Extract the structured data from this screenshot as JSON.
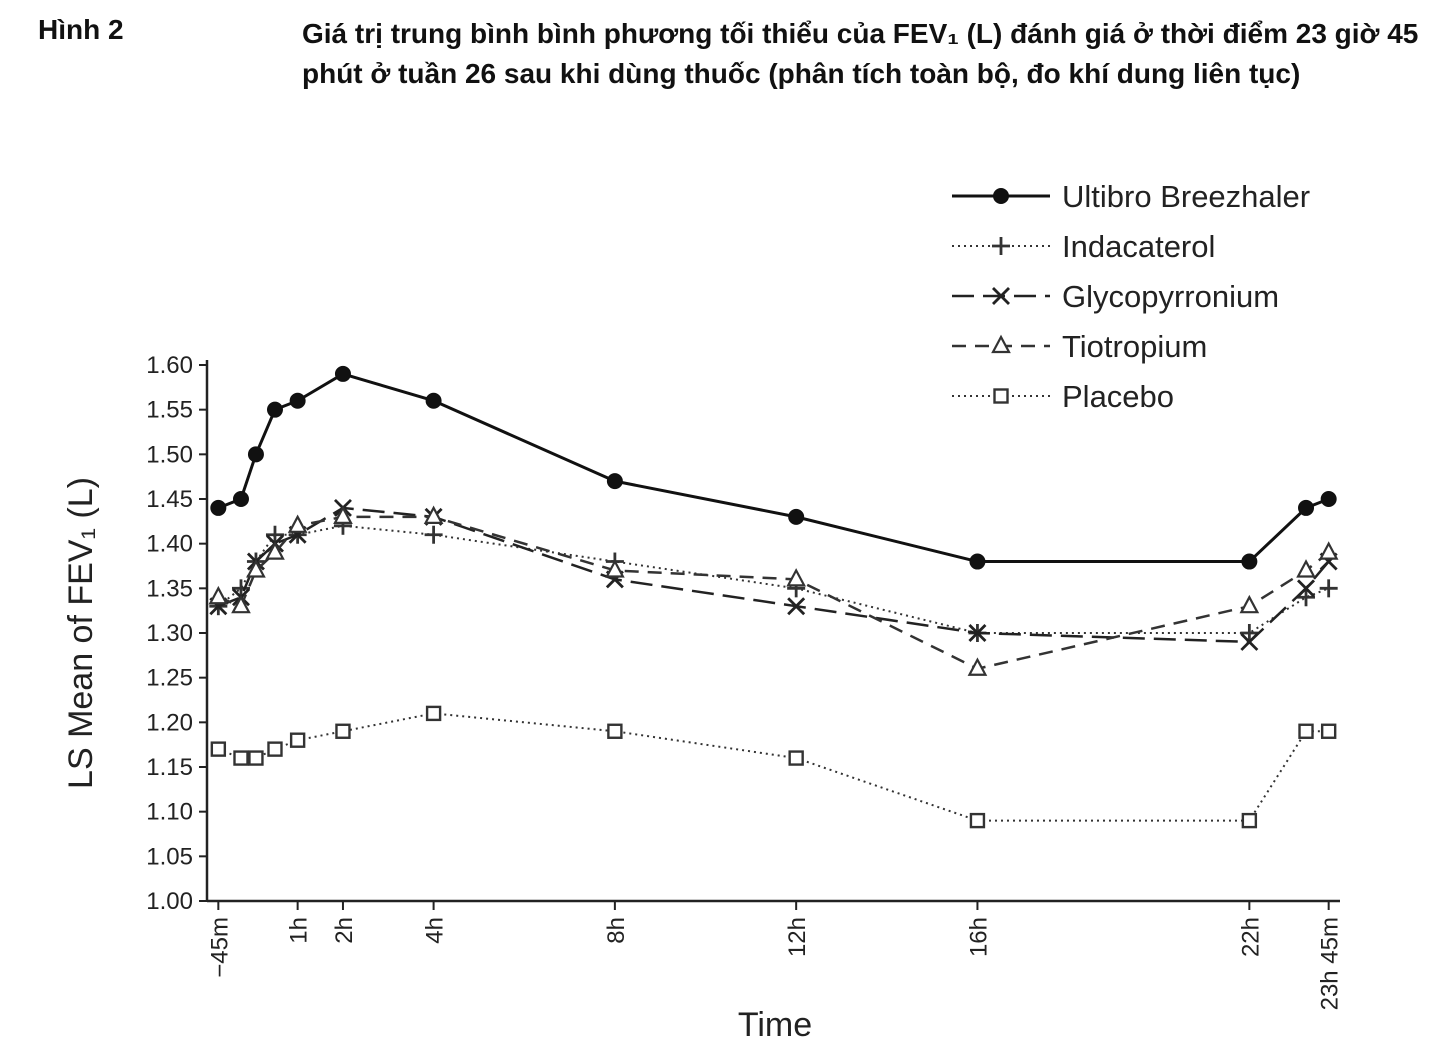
{
  "figure": {
    "label": "Hình 2",
    "title": "Giá trị trung bình bình phương tối thiểu của FEV₁ (L) đánh giá ở thời điểm 23 giờ 45 phút ở tuần 26 sau khi dùng thuốc (phân tích toàn bộ, đo khí dung liên tục)"
  },
  "chart_data": {
    "type": "line",
    "xlabel": "Time",
    "ylabel": "LS Mean of FEV₁ (L)",
    "ylim": [
      1.0,
      1.6
    ],
    "yticks": [
      "1.00",
      "1.05",
      "1.10",
      "1.15",
      "1.20",
      "1.25",
      "1.30",
      "1.35",
      "1.40",
      "1.45",
      "1.50",
      "1.55",
      "1.60"
    ],
    "xlim": [
      -1.0,
      24.0
    ],
    "xticks": [
      {
        "value": -0.75,
        "label": "−45m"
      },
      {
        "value": 1,
        "label": "1h"
      },
      {
        "value": 2,
        "label": "2h"
      },
      {
        "value": 4,
        "label": "4h"
      },
      {
        "value": 8,
        "label": "8h"
      },
      {
        "value": 12,
        "label": "12h"
      },
      {
        "value": 16,
        "label": "16h"
      },
      {
        "value": 22,
        "label": "22h"
      },
      {
        "value": 23.75,
        "label": "23h 45m"
      }
    ],
    "x": [
      -0.75,
      -0.25,
      0.08,
      0.5,
      1,
      2,
      4,
      8,
      12,
      16,
      22,
      23.25,
      23.75
    ],
    "legend_position": "top-right",
    "grid": false,
    "series": [
      {
        "name": "Ultibro Breezhaler",
        "marker": "filled-circle",
        "line": "solid",
        "color": "#111111",
        "values": [
          1.44,
          1.45,
          1.5,
          1.55,
          1.56,
          1.59,
          1.56,
          1.47,
          1.43,
          1.38,
          1.38,
          1.44,
          1.45
        ]
      },
      {
        "name": "Indacaterol",
        "marker": "plus",
        "line": "dotted",
        "color": "#333333",
        "values": [
          1.33,
          1.35,
          1.38,
          1.41,
          1.41,
          1.42,
          1.41,
          1.38,
          1.35,
          1.3,
          1.3,
          1.34,
          1.35
        ]
      },
      {
        "name": "Glycopyrronium",
        "marker": "cross",
        "line": "long-dash",
        "color": "#222222",
        "values": [
          1.33,
          1.34,
          1.38,
          1.4,
          1.41,
          1.44,
          1.43,
          1.36,
          1.33,
          1.3,
          1.29,
          1.35,
          1.38
        ]
      },
      {
        "name": "Tiotropium",
        "marker": "open-triangle",
        "line": "dashed",
        "color": "#333333",
        "values": [
          1.34,
          1.33,
          1.37,
          1.39,
          1.42,
          1.43,
          1.43,
          1.37,
          1.36,
          1.26,
          1.33,
          1.37,
          1.39
        ]
      },
      {
        "name": "Placebo",
        "marker": "open-square",
        "line": "dotted",
        "color": "#333333",
        "values": [
          1.17,
          1.16,
          1.16,
          1.17,
          1.18,
          1.19,
          1.21,
          1.19,
          1.16,
          1.09,
          1.09,
          1.19,
          1.19
        ]
      }
    ]
  }
}
